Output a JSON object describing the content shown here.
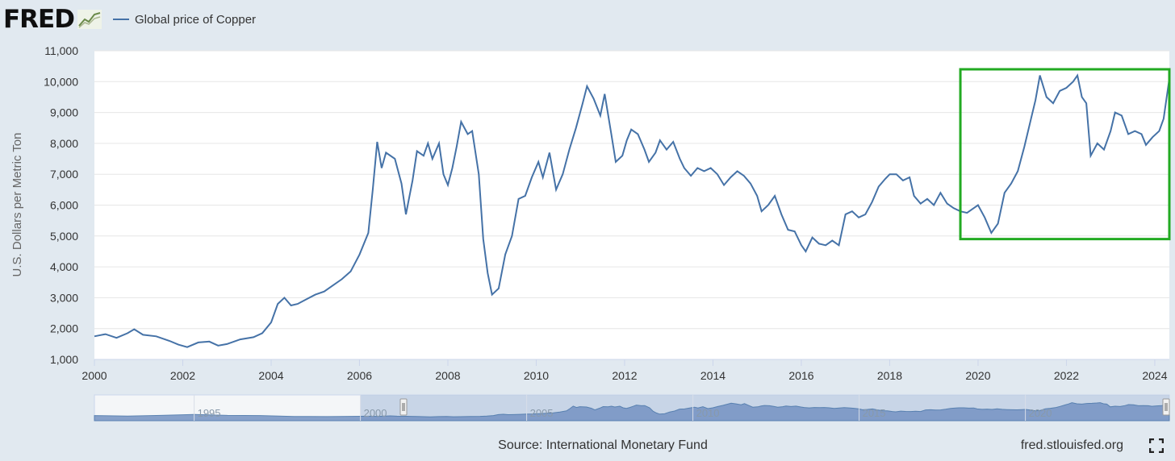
{
  "header": {
    "logo_text": "FRED",
    "logo_icon": "chart-line-icon",
    "legend_label": "Global price of Copper",
    "series_color": "#4572a7"
  },
  "chart_data": {
    "type": "line",
    "title": "",
    "ylabel": "U.S. Dollars per Metric Ton",
    "xlim": [
      2000.0,
      2024.33
    ],
    "ylim": [
      1000,
      11000
    ],
    "y_ticks": [
      "1,000",
      "2,000",
      "3,000",
      "4,000",
      "5,000",
      "6,000",
      "7,000",
      "8,000",
      "9,000",
      "10,000",
      "11,000"
    ],
    "x_ticks": [
      "2000",
      "2002",
      "2004",
      "2006",
      "2008",
      "2010",
      "2012",
      "2014",
      "2016",
      "2018",
      "2020",
      "2022",
      "2024"
    ],
    "grid": true,
    "series": [
      {
        "name": "Global price of Copper",
        "color": "#4572a7",
        "points": [
          [
            2000.0,
            1750
          ],
          [
            2000.25,
            1820
          ],
          [
            2000.5,
            1700
          ],
          [
            2000.75,
            1850
          ],
          [
            2000.9,
            1980
          ],
          [
            2001.1,
            1800
          ],
          [
            2001.4,
            1750
          ],
          [
            2001.7,
            1600
          ],
          [
            2001.9,
            1480
          ],
          [
            2002.1,
            1400
          ],
          [
            2002.35,
            1550
          ],
          [
            2002.6,
            1580
          ],
          [
            2002.8,
            1450
          ],
          [
            2003.0,
            1500
          ],
          [
            2003.3,
            1650
          ],
          [
            2003.6,
            1720
          ],
          [
            2003.8,
            1850
          ],
          [
            2004.0,
            2200
          ],
          [
            2004.15,
            2800
          ],
          [
            2004.3,
            3000
          ],
          [
            2004.45,
            2750
          ],
          [
            2004.6,
            2800
          ],
          [
            2004.8,
            2950
          ],
          [
            2005.0,
            3100
          ],
          [
            2005.2,
            3200
          ],
          [
            2005.4,
            3400
          ],
          [
            2005.6,
            3600
          ],
          [
            2005.8,
            3850
          ],
          [
            2006.0,
            4400
          ],
          [
            2006.2,
            5100
          ],
          [
            2006.3,
            6500
          ],
          [
            2006.4,
            8050
          ],
          [
            2006.5,
            7200
          ],
          [
            2006.6,
            7700
          ],
          [
            2006.8,
            7500
          ],
          [
            2006.95,
            6700
          ],
          [
            2007.05,
            5700
          ],
          [
            2007.2,
            6800
          ],
          [
            2007.3,
            7750
          ],
          [
            2007.45,
            7600
          ],
          [
            2007.55,
            8000
          ],
          [
            2007.65,
            7500
          ],
          [
            2007.8,
            8000
          ],
          [
            2007.9,
            7000
          ],
          [
            2008.0,
            6650
          ],
          [
            2008.1,
            7200
          ],
          [
            2008.2,
            7900
          ],
          [
            2008.3,
            8700
          ],
          [
            2008.45,
            8300
          ],
          [
            2008.55,
            8400
          ],
          [
            2008.7,
            7000
          ],
          [
            2008.8,
            4900
          ],
          [
            2008.9,
            3800
          ],
          [
            2009.0,
            3100
          ],
          [
            2009.15,
            3300
          ],
          [
            2009.3,
            4400
          ],
          [
            2009.45,
            5000
          ],
          [
            2009.6,
            6200
          ],
          [
            2009.75,
            6300
          ],
          [
            2009.9,
            6900
          ],
          [
            2010.05,
            7400
          ],
          [
            2010.15,
            6900
          ],
          [
            2010.3,
            7700
          ],
          [
            2010.45,
            6500
          ],
          [
            2010.6,
            7000
          ],
          [
            2010.75,
            7800
          ],
          [
            2010.9,
            8500
          ],
          [
            2011.05,
            9300
          ],
          [
            2011.15,
            9850
          ],
          [
            2011.3,
            9450
          ],
          [
            2011.45,
            8900
          ],
          [
            2011.55,
            9600
          ],
          [
            2011.7,
            8300
          ],
          [
            2011.8,
            7400
          ],
          [
            2011.95,
            7600
          ],
          [
            2012.05,
            8100
          ],
          [
            2012.15,
            8450
          ],
          [
            2012.3,
            8300
          ],
          [
            2012.45,
            7800
          ],
          [
            2012.55,
            7400
          ],
          [
            2012.7,
            7700
          ],
          [
            2012.8,
            8100
          ],
          [
            2012.95,
            7800
          ],
          [
            2013.1,
            8050
          ],
          [
            2013.25,
            7500
          ],
          [
            2013.35,
            7200
          ],
          [
            2013.5,
            6950
          ],
          [
            2013.65,
            7200
          ],
          [
            2013.8,
            7100
          ],
          [
            2013.95,
            7200
          ],
          [
            2014.1,
            7000
          ],
          [
            2014.25,
            6650
          ],
          [
            2014.4,
            6900
          ],
          [
            2014.55,
            7100
          ],
          [
            2014.7,
            6950
          ],
          [
            2014.85,
            6700
          ],
          [
            2015.0,
            6300
          ],
          [
            2015.1,
            5800
          ],
          [
            2015.25,
            6000
          ],
          [
            2015.4,
            6300
          ],
          [
            2015.55,
            5700
          ],
          [
            2015.7,
            5200
          ],
          [
            2015.85,
            5150
          ],
          [
            2016.0,
            4700
          ],
          [
            2016.1,
            4500
          ],
          [
            2016.25,
            4950
          ],
          [
            2016.4,
            4750
          ],
          [
            2016.55,
            4700
          ],
          [
            2016.7,
            4850
          ],
          [
            2016.85,
            4700
          ],
          [
            2017.0,
            5700
          ],
          [
            2017.15,
            5800
          ],
          [
            2017.3,
            5600
          ],
          [
            2017.45,
            5700
          ],
          [
            2017.6,
            6100
          ],
          [
            2017.75,
            6600
          ],
          [
            2017.9,
            6850
          ],
          [
            2018.0,
            7000
          ],
          [
            2018.15,
            7000
          ],
          [
            2018.3,
            6800
          ],
          [
            2018.45,
            6900
          ],
          [
            2018.55,
            6300
          ],
          [
            2018.7,
            6050
          ],
          [
            2018.85,
            6200
          ],
          [
            2019.0,
            6000
          ],
          [
            2019.15,
            6400
          ],
          [
            2019.3,
            6050
          ],
          [
            2019.45,
            5900
          ],
          [
            2019.6,
            5800
          ],
          [
            2019.75,
            5750
          ],
          [
            2019.9,
            5900
          ],
          [
            2020.0,
            6000
          ],
          [
            2020.15,
            5600
          ],
          [
            2020.3,
            5100
          ],
          [
            2020.45,
            5400
          ],
          [
            2020.6,
            6400
          ],
          [
            2020.75,
            6700
          ],
          [
            2020.9,
            7100
          ],
          [
            2021.05,
            7900
          ],
          [
            2021.2,
            8800
          ],
          [
            2021.3,
            9400
          ],
          [
            2021.4,
            10200
          ],
          [
            2021.55,
            9500
          ],
          [
            2021.7,
            9300
          ],
          [
            2021.85,
            9700
          ],
          [
            2022.0,
            9800
          ],
          [
            2022.15,
            10000
          ],
          [
            2022.25,
            10200
          ],
          [
            2022.35,
            9500
          ],
          [
            2022.45,
            9300
          ],
          [
            2022.55,
            7600
          ],
          [
            2022.7,
            8000
          ],
          [
            2022.85,
            7800
          ],
          [
            2023.0,
            8400
          ],
          [
            2023.1,
            9000
          ],
          [
            2023.25,
            8900
          ],
          [
            2023.4,
            8300
          ],
          [
            2023.55,
            8400
          ],
          [
            2023.7,
            8300
          ],
          [
            2023.8,
            7950
          ],
          [
            2023.95,
            8200
          ],
          [
            2024.1,
            8400
          ],
          [
            2024.2,
            8800
          ],
          [
            2024.33,
            10100
          ]
        ]
      }
    ],
    "annotation": {
      "type": "highlight-box",
      "color": "#22aa22",
      "x_range": [
        2019.6,
        2024.33
      ],
      "y_range": [
        4900,
        10400
      ]
    }
  },
  "navigator": {
    "ticks": [
      "1995",
      "2000",
      "2005",
      "2010",
      "2015",
      "2020"
    ],
    "selected_range": [
      2000.0,
      2024.33
    ]
  },
  "footer": {
    "source": "Source: International Monetary Fund",
    "site": "fred.stlouisfed.org",
    "fullscreen_icon": "fullscreen-icon"
  }
}
